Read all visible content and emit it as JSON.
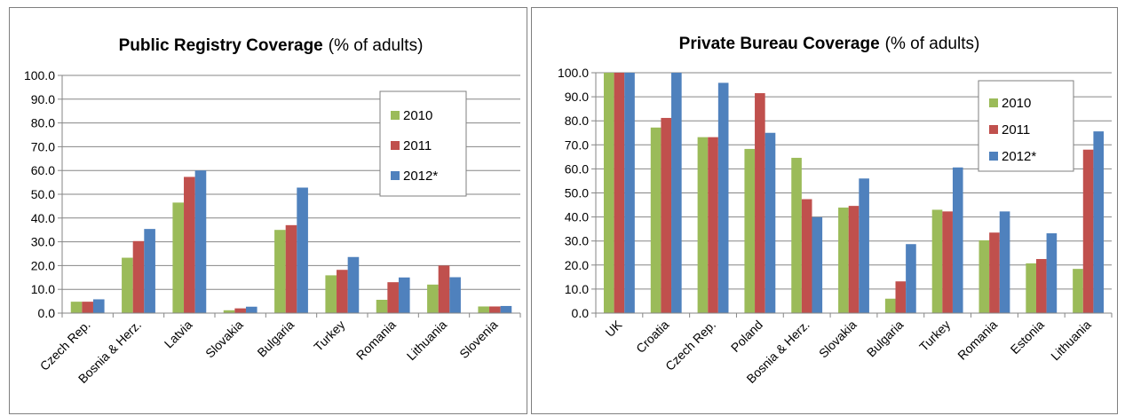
{
  "colors": {
    "2010": "#9bbb59",
    "2011": "#c0504d",
    "2012*": "#4f81bd",
    "grid": "#868686",
    "axis": "#868686"
  },
  "chart_data": [
    {
      "type": "bar",
      "title": "Public Registry Coverage",
      "subtitle": "(% of adults)",
      "xlabel": "",
      "ylabel": "",
      "ylim": [
        0,
        100
      ],
      "yticks": [
        "0.0",
        "10.0",
        "20.0",
        "30.0",
        "40.0",
        "50.0",
        "60.0",
        "70.0",
        "80.0",
        "90.0",
        "100.0"
      ],
      "grid": true,
      "legend": "top-right",
      "categories": [
        "Czech Rep.",
        "Bosnia & Herz.",
        "Latvia",
        "Slovakia",
        "Bulgaria",
        "Turkey",
        "Romania",
        "Lithuania",
        "Slovenia"
      ],
      "series": [
        {
          "name": "2010",
          "values": [
            4.8,
            23.3,
            46.5,
            1.2,
            35.0,
            15.9,
            5.6,
            12.0,
            2.8
          ]
        },
        {
          "name": "2011",
          "values": [
            4.8,
            30.3,
            57.3,
            2.0,
            37.0,
            18.2,
            13.0,
            20.0,
            2.8
          ]
        },
        {
          "name": "2012*",
          "values": [
            5.8,
            35.4,
            60.0,
            2.7,
            52.8,
            23.6,
            15.0,
            15.1,
            3.0
          ]
        }
      ]
    },
    {
      "type": "bar",
      "title": "Private Bureau Coverage",
      "subtitle": "(% of adults)",
      "xlabel": "",
      "ylabel": "",
      "ylim": [
        0,
        100
      ],
      "yticks": [
        "0.0",
        "10.0",
        "20.0",
        "30.0",
        "40.0",
        "50.0",
        "60.0",
        "70.0",
        "80.0",
        "90.0",
        "100.0"
      ],
      "grid": true,
      "legend": "top-right",
      "categories": [
        "UK",
        "Croatia",
        "Czech Rep.",
        "Poland",
        "Bosnia & Herz.",
        "Slovakia",
        "Bulgaria",
        "Turkey",
        "Romania",
        "Estonia",
        "Lithuania"
      ],
      "series": [
        {
          "name": "2010",
          "values": [
            100.0,
            77.2,
            73.2,
            68.3,
            64.6,
            43.9,
            6.0,
            43.0,
            30.3,
            20.7,
            18.4
          ]
        },
        {
          "name": "2011",
          "values": [
            100.0,
            81.2,
            73.2,
            91.5,
            47.4,
            44.6,
            13.2,
            42.3,
            33.5,
            22.5,
            68.0
          ]
        },
        {
          "name": "2012*",
          "values": [
            100.0,
            100.0,
            95.8,
            75.0,
            39.9,
            56.0,
            28.7,
            60.6,
            42.3,
            33.2,
            75.6
          ]
        }
      ]
    }
  ]
}
